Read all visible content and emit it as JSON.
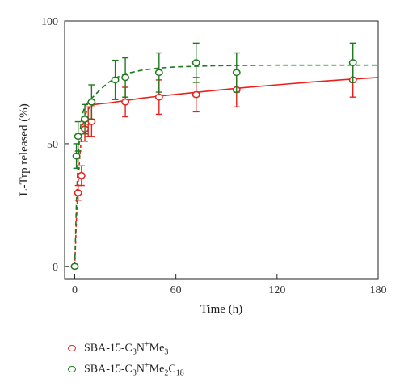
{
  "chart_data": {
    "type": "scatter",
    "xlabel": "Time (h)",
    "ylabel": "L-Trp released (%)",
    "xlim": [
      -6,
      180
    ],
    "ylim": [
      -5,
      100
    ],
    "xticks": [
      0,
      60,
      120,
      180
    ],
    "yticks": [
      0,
      50,
      100
    ],
    "grid": false,
    "legend_position": "bottom-left",
    "series": [
      {
        "name": "SBA-15-C3N+Me3",
        "legend_parts": [
          {
            "t": "SBA-15-C",
            "s": ""
          },
          {
            "t": "3",
            "s": "sub"
          },
          {
            "t": "N",
            "s": ""
          },
          {
            "t": "+",
            "s": "sup"
          },
          {
            "t": "Me",
            "s": ""
          },
          {
            "t": "3",
            "s": "sub"
          }
        ],
        "color": "#e8211c",
        "x": [
          0,
          2,
          4,
          6,
          8,
          10,
          30,
          50,
          72,
          96,
          165
        ],
        "y": [
          0,
          30,
          37,
          56,
          59,
          59,
          67,
          69,
          70,
          72,
          76
        ],
        "err": [
          0,
          3,
          4,
          5,
          6,
          6,
          6,
          7,
          7,
          7,
          7
        ],
        "fit_style": "solid",
        "fit_x": [
          0,
          1,
          2,
          3,
          4,
          5,
          6,
          7,
          8,
          9,
          10,
          12,
          15,
          20,
          30,
          40,
          50,
          60,
          80,
          100,
          120,
          140,
          160,
          180
        ],
        "fit_y": [
          0,
          19,
          34,
          45,
          53,
          58,
          61,
          63,
          64,
          65,
          65.5,
          66,
          66.3,
          66.6,
          67.6,
          68.6,
          69.4,
          70.1,
          71.5,
          72.8,
          74.0,
          75.1,
          76.1,
          77.0
        ],
        "fit_dashed_until": 10
      },
      {
        "name": "SBA-15-C3N+Me2C18",
        "legend_parts": [
          {
            "t": "SBA-15-C",
            "s": ""
          },
          {
            "t": "3",
            "s": "sub"
          },
          {
            "t": "N",
            "s": ""
          },
          {
            "t": "+",
            "s": "sup"
          },
          {
            "t": "Me",
            "s": ""
          },
          {
            "t": "2",
            "s": "sub"
          },
          {
            "t": "C",
            "s": ""
          },
          {
            "t": "18",
            "s": "sub"
          }
        ],
        "color": "#1e7a1e",
        "x": [
          0,
          1,
          2,
          6,
          10,
          24,
          30,
          50,
          72,
          96,
          165
        ],
        "y": [
          0,
          45,
          53,
          60,
          67,
          76,
          77,
          79,
          83,
          79,
          83
        ],
        "err": [
          0,
          5,
          6,
          6,
          7,
          8,
          8,
          8,
          8,
          8,
          8
        ],
        "fit_style": "dashed",
        "fit_x": [
          0,
          1,
          2,
          3,
          4,
          5,
          6,
          8,
          10,
          15,
          20,
          25,
          30,
          40,
          50,
          60,
          80,
          100,
          120,
          140,
          160,
          180
        ],
        "fit_y": [
          0,
          26,
          44,
          54,
          60,
          63,
          65,
          67,
          68.5,
          72,
          75,
          77,
          78.5,
          80,
          80.8,
          81.3,
          81.7,
          81.9,
          82,
          82,
          82,
          82
        ]
      }
    ]
  }
}
